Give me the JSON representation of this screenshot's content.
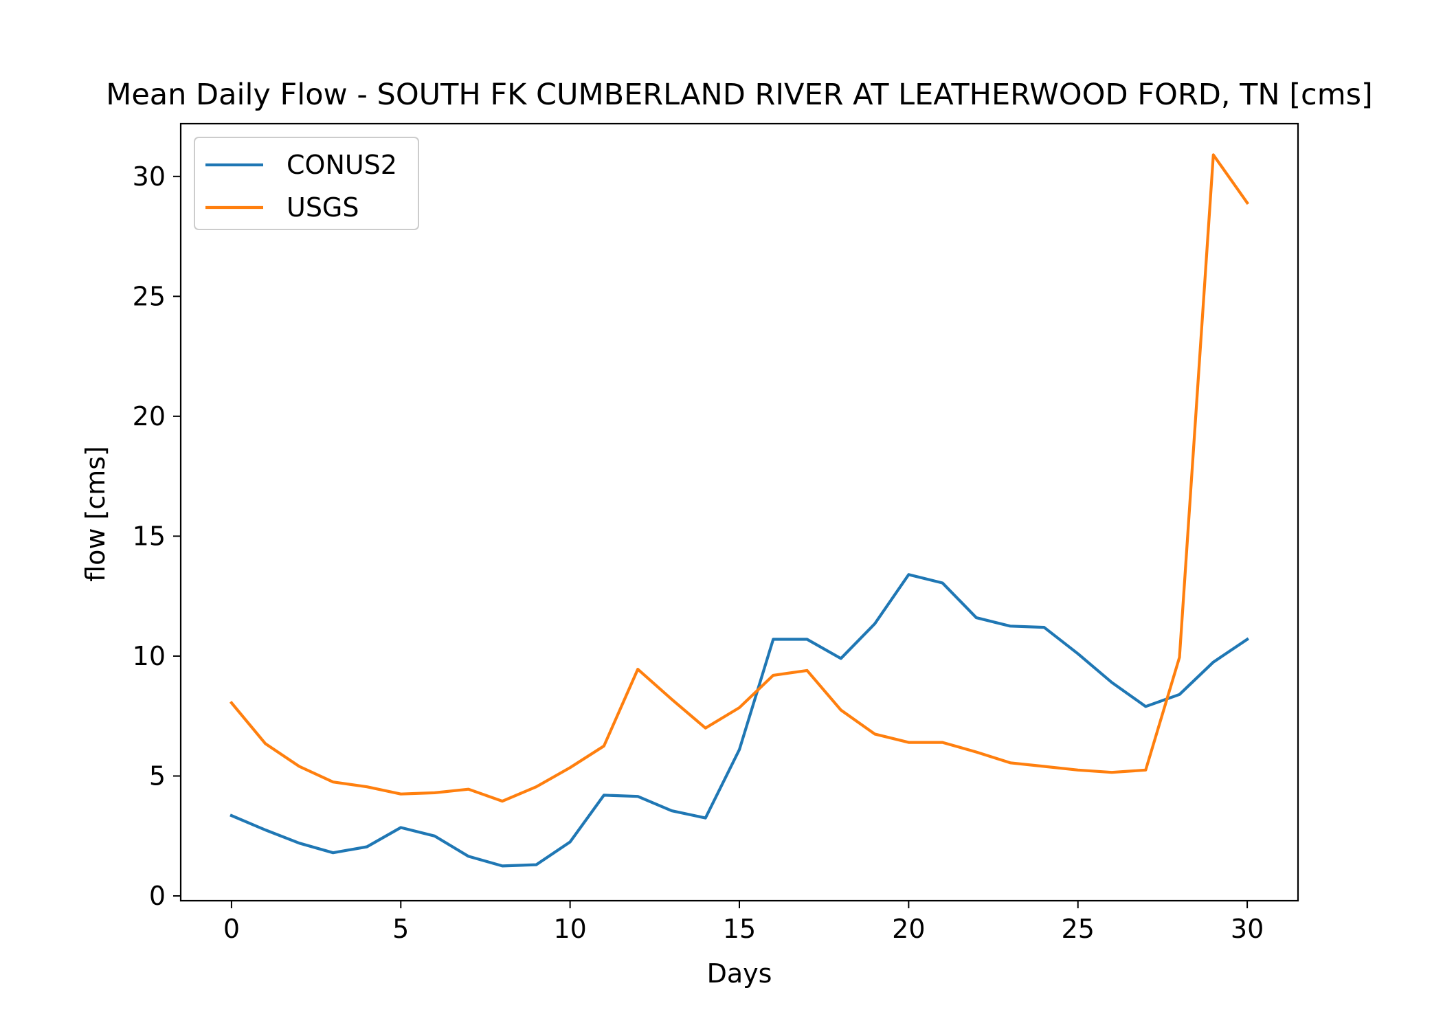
{
  "chart_data": {
    "type": "line",
    "title": "Mean Daily Flow - SOUTH FK CUMBERLAND RIVER AT LEATHERWOOD FORD, TN [cms]",
    "xlabel": "Days",
    "ylabel": "flow [cms]",
    "xlim": [
      -1.5,
      31.5
    ],
    "ylim": [
      -0.2,
      32.2
    ],
    "xticks": [
      0,
      5,
      10,
      15,
      20,
      25,
      30
    ],
    "yticks": [
      0,
      5,
      10,
      15,
      20,
      25,
      30
    ],
    "grid": false,
    "legend_position": "upper left",
    "x": [
      0,
      1,
      2,
      3,
      4,
      5,
      6,
      7,
      8,
      9,
      10,
      11,
      12,
      13,
      14,
      15,
      16,
      17,
      18,
      19,
      20,
      21,
      22,
      23,
      24,
      25,
      26,
      27,
      28,
      29,
      30
    ],
    "series": [
      {
        "name": "CONUS2",
        "color": "#1f77b4",
        "values": [
          3.35,
          2.75,
          2.2,
          1.8,
          2.05,
          2.85,
          2.5,
          1.65,
          1.25,
          1.3,
          2.25,
          4.2,
          4.15,
          3.55,
          3.25,
          6.1,
          10.7,
          10.7,
          9.9,
          11.35,
          13.4,
          13.05,
          11.6,
          11.25,
          11.2,
          10.1,
          8.9,
          7.9,
          8.4,
          9.75,
          10.7
        ]
      },
      {
        "name": "USGS",
        "color": "#ff7f0e",
        "values": [
          8.05,
          6.35,
          5.4,
          4.75,
          4.55,
          4.25,
          4.3,
          4.45,
          3.95,
          4.55,
          5.35,
          6.25,
          9.45,
          8.2,
          7.0,
          7.85,
          9.2,
          9.4,
          7.75,
          6.75,
          6.4,
          6.4,
          6.0,
          5.55,
          5.4,
          5.25,
          5.15,
          5.25,
          9.95,
          30.9,
          28.9
        ]
      }
    ]
  }
}
